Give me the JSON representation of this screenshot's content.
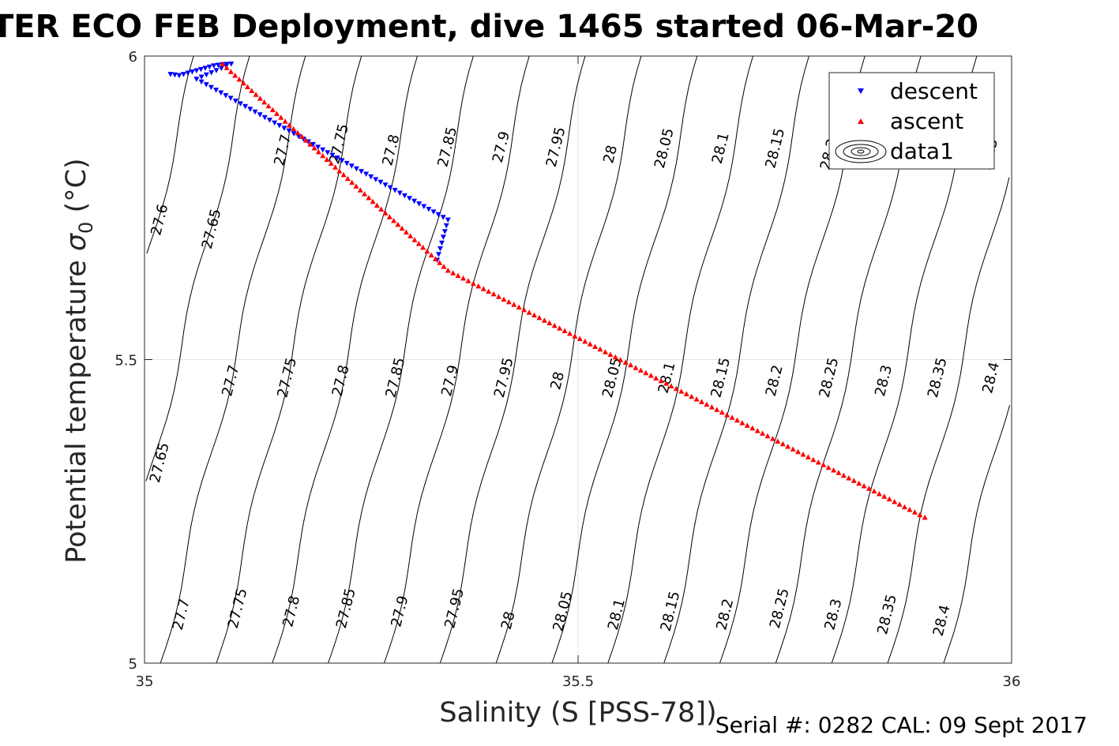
{
  "chart_data": {
    "type": "scatter",
    "title": "TER ECO FEB Deployment, dive 1465 started 06-Mar-20",
    "xlabel": "Salinity (S [PSS-78])",
    "ylabel": "Potential temperature",
    "ylabel_symbol": "σ",
    "ylabel_sub": "0",
    "ylabel_unit": "(°C)",
    "footer": "Serial #: 0282  CAL: 09 Sept 2017",
    "xlim": [
      35,
      36
    ],
    "ylim": [
      5,
      6
    ],
    "xticks": [
      35,
      35.5,
      36
    ],
    "xtick_labels": [
      "35",
      "35.5",
      "36"
    ],
    "yticks": [
      5,
      5.5,
      6
    ],
    "ytick_labels": [
      "5",
      "5.5",
      "6"
    ],
    "grid": true,
    "legend_position": "top-right",
    "legend": [
      "descent",
      "ascent",
      "data1"
    ],
    "series": [
      {
        "name": "descent",
        "marker": "triangle-down",
        "color": "#0000ff",
        "points": [
          [
            35.03,
            5.97
          ],
          [
            35.04,
            5.968
          ],
          [
            35.05,
            5.972
          ],
          [
            35.06,
            5.976
          ],
          [
            35.07,
            5.98
          ],
          [
            35.08,
            5.984
          ],
          [
            35.09,
            5.986
          ],
          [
            35.1,
            5.987
          ],
          [
            35.06,
            5.962
          ],
          [
            35.15,
            5.89
          ],
          [
            35.2,
            5.85
          ],
          [
            35.25,
            5.81
          ],
          [
            35.3,
            5.77
          ],
          [
            35.35,
            5.73
          ],
          [
            35.3375,
            5.6638
          ]
        ]
      },
      {
        "name": "ascent",
        "marker": "triangle-up",
        "color": "#ff0000",
        "points": [
          [
            35.09,
            5.987
          ],
          [
            35.35,
            5.647
          ],
          [
            35.9,
            5.24
          ]
        ]
      }
    ],
    "contour_series_name": "data1",
    "isopycnal_levels": [
      27.6,
      27.65,
      27.7,
      27.75,
      27.8,
      27.85,
      27.9,
      27.95,
      28,
      28.05,
      28.1,
      28.15,
      28.2,
      28.25,
      28.3,
      28.35,
      28.4
    ],
    "contour_labels": [
      {
        "text": "27.6",
        "x": 35.018,
        "y": 5.73
      },
      {
        "text": "27.65",
        "x": 35.078,
        "y": 5.715
      },
      {
        "text": "27.7",
        "x": 35.16,
        "y": 5.845
      },
      {
        "text": "27.75",
        "x": 35.225,
        "y": 5.855
      },
      {
        "text": "27.8",
        "x": 35.285,
        "y": 5.845
      },
      {
        "text": "27.85",
        "x": 35.35,
        "y": 5.85
      },
      {
        "text": "27.9",
        "x": 35.412,
        "y": 5.85
      },
      {
        "text": "27.95",
        "x": 35.475,
        "y": 5.85
      },
      {
        "text": "28",
        "x": 35.538,
        "y": 5.838
      },
      {
        "text": "28.05",
        "x": 35.6,
        "y": 5.848
      },
      {
        "text": "28.1",
        "x": 35.665,
        "y": 5.848
      },
      {
        "text": "28.15",
        "x": 35.728,
        "y": 5.848
      },
      {
        "text": "28.2",
        "x": 35.79,
        "y": 5.838
      },
      {
        "text": "28.3",
        "x": 35.975,
        "y": 5.838
      },
      {
        "text": "27.65",
        "x": 35.018,
        "y": 5.33
      },
      {
        "text": "27.7",
        "x": 35.1,
        "y": 5.465
      },
      {
        "text": "27.75",
        "x": 35.165,
        "y": 5.47
      },
      {
        "text": "27.8",
        "x": 35.227,
        "y": 5.465
      },
      {
        "text": "27.85",
        "x": 35.29,
        "y": 5.47
      },
      {
        "text": "27.9",
        "x": 35.353,
        "y": 5.465
      },
      {
        "text": "27.95",
        "x": 35.415,
        "y": 5.47
      },
      {
        "text": "28",
        "x": 35.477,
        "y": 5.465
      },
      {
        "text": "28.05",
        "x": 35.54,
        "y": 5.47
      },
      {
        "text": "28.1",
        "x": 35.603,
        "y": 5.47
      },
      {
        "text": "28.15",
        "x": 35.665,
        "y": 5.47
      },
      {
        "text": "28.2",
        "x": 35.727,
        "y": 5.465
      },
      {
        "text": "28.25",
        "x": 35.79,
        "y": 5.47
      },
      {
        "text": "28.3",
        "x": 35.853,
        "y": 5.465
      },
      {
        "text": "28.35",
        "x": 35.915,
        "y": 5.47
      },
      {
        "text": "28.4",
        "x": 35.977,
        "y": 5.47
      },
      {
        "text": "27.7",
        "x": 35.043,
        "y": 5.08
      },
      {
        "text": "27.75",
        "x": 35.108,
        "y": 5.09
      },
      {
        "text": "27.8",
        "x": 35.17,
        "y": 5.085
      },
      {
        "text": "27.85",
        "x": 35.233,
        "y": 5.09
      },
      {
        "text": "27.9",
        "x": 35.295,
        "y": 5.085
      },
      {
        "text": "27.95",
        "x": 35.358,
        "y": 5.09
      },
      {
        "text": "28",
        "x": 35.42,
        "y": 5.07
      },
      {
        "text": "28.05",
        "x": 35.483,
        "y": 5.085
      },
      {
        "text": "28.1",
        "x": 35.545,
        "y": 5.08
      },
      {
        "text": "28.15",
        "x": 35.607,
        "y": 5.085
      },
      {
        "text": "28.2",
        "x": 35.67,
        "y": 5.08
      },
      {
        "text": "28.25",
        "x": 35.733,
        "y": 5.09
      },
      {
        "text": "28.3",
        "x": 35.795,
        "y": 5.08
      },
      {
        "text": "28.35",
        "x": 35.857,
        "y": 5.08
      },
      {
        "text": "28.4",
        "x": 35.92,
        "y": 5.07
      }
    ]
  }
}
